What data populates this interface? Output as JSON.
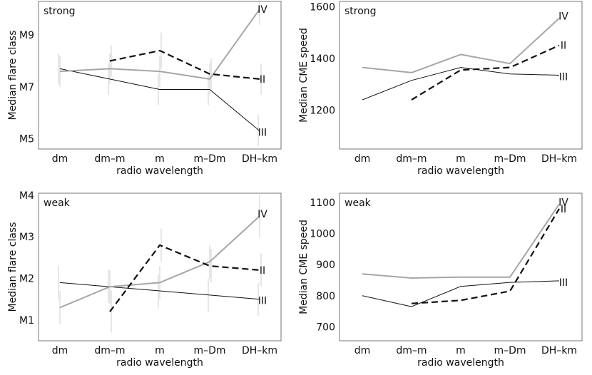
{
  "chart_data": [
    {
      "type": "line",
      "panel": "top-left",
      "corner_label": "strong",
      "xlabel": "radio  wavelength",
      "ylabel": "Median  flare  class",
      "categories": [
        "dm",
        "dm–m",
        "m",
        "m–Dm",
        "DH–km"
      ],
      "ylim": [
        4.6,
        10.3
      ],
      "yticks": [
        {
          "v": 5,
          "label": "M5"
        },
        {
          "v": 7,
          "label": "M7"
        },
        {
          "v": 9,
          "label": "M9"
        }
      ],
      "series": [
        {
          "name": "II",
          "style": "dashed",
          "values": [
            null,
            8.0,
            8.4,
            7.5,
            7.3
          ],
          "errors": [
            null,
            0.6,
            0.7,
            0.6,
            0.6
          ]
        },
        {
          "name": "III",
          "style": "thin",
          "values": [
            7.7,
            7.3,
            6.9,
            6.9,
            5.3
          ],
          "errors": [
            0.6,
            0.6,
            0.6,
            0.6,
            0.6
          ]
        },
        {
          "name": "IV",
          "style": "gray",
          "values": [
            7.6,
            7.7,
            7.6,
            7.3,
            10.0
          ],
          "errors": [
            0.6,
            0.6,
            0.6,
            0.6,
            0.6
          ]
        }
      ]
    },
    {
      "type": "line",
      "panel": "top-right",
      "corner_label": "strong",
      "xlabel": "radio  wavelength",
      "ylabel": "Median  CME  speed",
      "categories": [
        "dm",
        "dm–m",
        "m",
        "m–Dm",
        "DH–km"
      ],
      "ylim": [
        1050,
        1620
      ],
      "yticks": [
        {
          "v": 1200,
          "label": "1200"
        },
        {
          "v": 1400,
          "label": "1400"
        },
        {
          "v": 1600,
          "label": "1600"
        }
      ],
      "series": [
        {
          "name": "II",
          "style": "dashed",
          "values": [
            null,
            1240,
            1355,
            1365,
            1450
          ]
        },
        {
          "name": "III",
          "style": "thin",
          "values": [
            1240,
            1315,
            1365,
            1340,
            1335
          ]
        },
        {
          "name": "IV",
          "style": "gray",
          "values": [
            1365,
            1345,
            1415,
            1380,
            1555
          ]
        }
      ]
    },
    {
      "type": "line",
      "panel": "bottom-left",
      "corner_label": "weak",
      "xlabel": "radio  wavelength",
      "ylabel": "Median  flare  class",
      "categories": [
        "dm",
        "dm–m",
        "m",
        "m–Dm",
        "DH–km"
      ],
      "ylim": [
        0.5,
        4.05
      ],
      "yticks": [
        {
          "v": 1,
          "label": "M1"
        },
        {
          "v": 2,
          "label": "M2"
        },
        {
          "v": 3,
          "label": "M3"
        },
        {
          "v": 4,
          "label": "M4"
        }
      ],
      "series": [
        {
          "name": "II",
          "style": "dashed",
          "values": [
            null,
            1.2,
            2.8,
            2.3,
            2.2
          ],
          "errors": [
            null,
            0.5,
            0.4,
            0.4,
            0.4
          ]
        },
        {
          "name": "III",
          "style": "thin",
          "values": [
            1.9,
            1.8,
            1.7,
            1.6,
            1.5
          ],
          "errors": [
            0.4,
            0.4,
            0.4,
            0.4,
            0.4
          ]
        },
        {
          "name": "IV",
          "style": "gray",
          "values": [
            1.3,
            1.8,
            1.9,
            2.4,
            3.5
          ],
          "errors": [
            0.4,
            0.4,
            0.4,
            0.4,
            0.5
          ]
        }
      ]
    },
    {
      "type": "line",
      "panel": "bottom-right",
      "corner_label": "weak",
      "xlabel": "radio  wavelength",
      "ylabel": "Median  CME  speed",
      "categories": [
        "dm",
        "dm–m",
        "m",
        "m–Dm",
        "DH–km"
      ],
      "ylim": [
        655,
        1130
      ],
      "yticks": [
        {
          "v": 700,
          "label": "700"
        },
        {
          "v": 800,
          "label": "800"
        },
        {
          "v": 900,
          "label": "900"
        },
        {
          "v": 1000,
          "label": "1000"
        },
        {
          "v": 1100,
          "label": "1100"
        }
      ],
      "series": [
        {
          "name": "II",
          "style": "dashed",
          "values": [
            null,
            775,
            785,
            815,
            1080
          ]
        },
        {
          "name": "III",
          "style": "thin",
          "values": [
            800,
            765,
            830,
            843,
            848
          ]
        },
        {
          "name": "IV",
          "style": "gray",
          "values": [
            870,
            857,
            860,
            860,
            1095
          ]
        }
      ]
    }
  ]
}
